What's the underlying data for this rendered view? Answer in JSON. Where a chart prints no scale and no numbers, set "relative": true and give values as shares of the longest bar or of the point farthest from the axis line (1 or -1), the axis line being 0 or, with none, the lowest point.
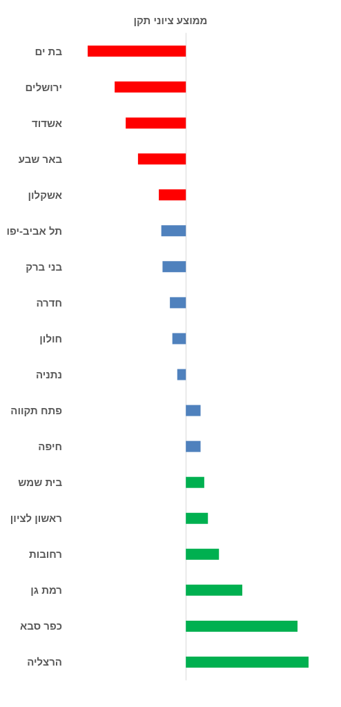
{
  "chart_data": {
    "type": "bar",
    "orientation": "horizontal",
    "relative": true,
    "title": "ממוצע ציוני תקן",
    "categories": [
      "בת ים",
      "ירושלים",
      "אשדוד",
      "באר שבע",
      "אשקלון",
      "תל אביב-יפו",
      "בני ברק",
      "חדרה",
      "חולון",
      "נתניה",
      "פתח תקווה",
      "חיפה",
      "בית שמש",
      "ראשון לציון",
      "רחובות",
      "רמת גן",
      "כפר סבא",
      "הרצליה"
    ],
    "values": [
      -0.8,
      -0.58,
      -0.49,
      -0.39,
      -0.22,
      -0.2,
      -0.19,
      -0.13,
      -0.11,
      -0.07,
      0.12,
      0.12,
      0.15,
      0.18,
      0.27,
      0.46,
      0.91,
      1
    ],
    "colors": [
      "#ff0000",
      "#ff0000",
      "#ff0000",
      "#ff0000",
      "#ff0000",
      "#4f81bd",
      "#4f81bd",
      "#4f81bd",
      "#4f81bd",
      "#4f81bd",
      "#4f81bd",
      "#4f81bd",
      "#00b050",
      "#00b050",
      "#00b050",
      "#00b050",
      "#00b050",
      "#00b050"
    ]
  }
}
